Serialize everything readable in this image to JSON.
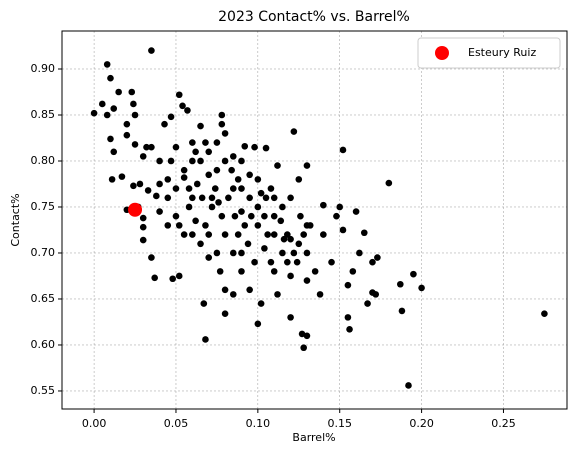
{
  "chart_data": {
    "type": "scatter",
    "title": "2023 Contact% vs. Barrel%",
    "x_label": "Barrel%",
    "y_label": "Contact%",
    "xlim": [
      -0.0196,
      0.2888
    ],
    "ylim": [
      0.5304,
      0.9413
    ],
    "xticks": [
      {
        "value": 0,
        "label": "0.00"
      },
      0.05,
      {
        "value": 0.1,
        "label": "0.10"
      },
      0.15,
      {
        "value": 0.2,
        "label": "0.20"
      },
      0.25
    ],
    "yticks": [
      0.55,
      {
        "value": 0.6,
        "label": "0.60"
      },
      0.65,
      {
        "value": 0.7,
        "label": "0.70"
      },
      0.75,
      {
        "value": 0.8,
        "label": "0.80"
      },
      0.85,
      {
        "value": 0.9,
        "label": "0.90"
      }
    ],
    "grid": true,
    "legend_position": "upper right",
    "series": [
      {
        "color": "#000000",
        "x": [
          0.0,
          0.005,
          0.008,
          0.01,
          0.012,
          0.015,
          0.008,
          0.01,
          0.012,
          0.011,
          0.017,
          0.02,
          0.02,
          0.023,
          0.024,
          0.025,
          0.025,
          0.035,
          0.03,
          0.032,
          0.035,
          0.028,
          0.024,
          0.02,
          0.027,
          0.03,
          0.03,
          0.03,
          0.035,
          0.037,
          0.038,
          0.033,
          0.04,
          0.04,
          0.043,
          0.045,
          0.047,
          0.048,
          0.052,
          0.052,
          0.054,
          0.057,
          0.055,
          0.06,
          0.06,
          0.06,
          0.058,
          0.062,
          0.065,
          0.065,
          0.067,
          0.068,
          0.07,
          0.072,
          0.075,
          0.077,
          0.078,
          0.078,
          0.08,
          0.08,
          0.08,
          0.085,
          0.085,
          0.088,
          0.09,
          0.09,
          0.092,
          0.095,
          0.095,
          0.098,
          0.1,
          0.1,
          0.102,
          0.104,
          0.105,
          0.108,
          0.11,
          0.11,
          0.112,
          0.112,
          0.115,
          0.118,
          0.12,
          0.12,
          0.122,
          0.125,
          0.125,
          0.127,
          0.128,
          0.13,
          0.13,
          0.13,
          0.132,
          0.135,
          0.138,
          0.14,
          0.14,
          0.145,
          0.148,
          0.15,
          0.152,
          0.152,
          0.155,
          0.155,
          0.156,
          0.158,
          0.16,
          0.162,
          0.165,
          0.167,
          0.17,
          0.17,
          0.172,
          0.173,
          0.18,
          0.187,
          0.188,
          0.192,
          0.195,
          0.2,
          0.275,
          0.045,
          0.05,
          0.05,
          0.055,
          0.058,
          0.063,
          0.066,
          0.068,
          0.07,
          0.072,
          0.074,
          0.076,
          0.078,
          0.08,
          0.082,
          0.084,
          0.086,
          0.088,
          0.09,
          0.092,
          0.094,
          0.096,
          0.098,
          0.1,
          0.102,
          0.104,
          0.106,
          0.108,
          0.11,
          0.114,
          0.116,
          0.118,
          0.12,
          0.122,
          0.124,
          0.126,
          0.128,
          0.13,
          0.09,
          0.085,
          0.07,
          0.065,
          0.062,
          0.05,
          0.047,
          0.055,
          0.075,
          0.08,
          0.068,
          0.085,
          0.09,
          0.075,
          0.07,
          0.06,
          0.045,
          0.04,
          0.052,
          0.11,
          0.1,
          0.105,
          0.095,
          0.115,
          0.12,
          0.13
        ],
        "values": [
          0.852,
          0.862,
          0.905,
          0.89,
          0.857,
          0.875,
          0.85,
          0.824,
          0.81,
          0.78,
          0.783,
          0.84,
          0.828,
          0.875,
          0.862,
          0.818,
          0.85,
          0.92,
          0.805,
          0.815,
          0.815,
          0.775,
          0.773,
          0.747,
          0.75,
          0.738,
          0.728,
          0.714,
          0.695,
          0.673,
          0.762,
          0.768,
          0.8,
          0.745,
          0.84,
          0.73,
          0.848,
          0.672,
          0.675,
          0.872,
          0.86,
          0.855,
          0.782,
          0.82,
          0.8,
          0.76,
          0.75,
          0.735,
          0.71,
          0.838,
          0.645,
          0.606,
          0.785,
          0.75,
          0.79,
          0.68,
          0.85,
          0.84,
          0.8,
          0.66,
          0.634,
          0.77,
          0.655,
          0.72,
          0.745,
          0.7,
          0.816,
          0.76,
          0.66,
          0.815,
          0.623,
          0.75,
          0.645,
          0.705,
          0.814,
          0.77,
          0.72,
          0.68,
          0.795,
          0.655,
          0.7,
          0.72,
          0.675,
          0.63,
          0.832,
          0.78,
          0.71,
          0.612,
          0.597,
          0.61,
          0.795,
          0.67,
          0.73,
          0.68,
          0.655,
          0.72,
          0.752,
          0.69,
          0.74,
          0.75,
          0.725,
          0.812,
          0.665,
          0.63,
          0.617,
          0.68,
          0.745,
          0.7,
          0.722,
          0.645,
          0.657,
          0.69,
          0.655,
          0.695,
          0.776,
          0.666,
          0.637,
          0.556,
          0.677,
          0.662,
          0.634,
          0.78,
          0.77,
          0.74,
          0.72,
          0.77,
          0.775,
          0.76,
          0.73,
          0.72,
          0.76,
          0.77,
          0.755,
          0.74,
          0.72,
          0.76,
          0.79,
          0.74,
          0.78,
          0.77,
          0.73,
          0.71,
          0.74,
          0.69,
          0.73,
          0.765,
          0.74,
          0.72,
          0.69,
          0.76,
          0.735,
          0.715,
          0.69,
          0.715,
          0.7,
          0.69,
          0.74,
          0.72,
          0.7,
          0.8,
          0.805,
          0.81,
          0.8,
          0.81,
          0.815,
          0.8,
          0.79,
          0.82,
          0.83,
          0.82,
          0.7,
          0.68,
          0.7,
          0.695,
          0.72,
          0.76,
          0.775,
          0.73,
          0.74,
          0.78,
          0.76,
          0.785,
          0.75,
          0.76,
          0.73
        ]
      },
      {
        "name": "Esteury Ruiz",
        "color": "#ff0000",
        "x": [
          0.025
        ],
        "values": [
          0.747
        ]
      }
    ]
  }
}
